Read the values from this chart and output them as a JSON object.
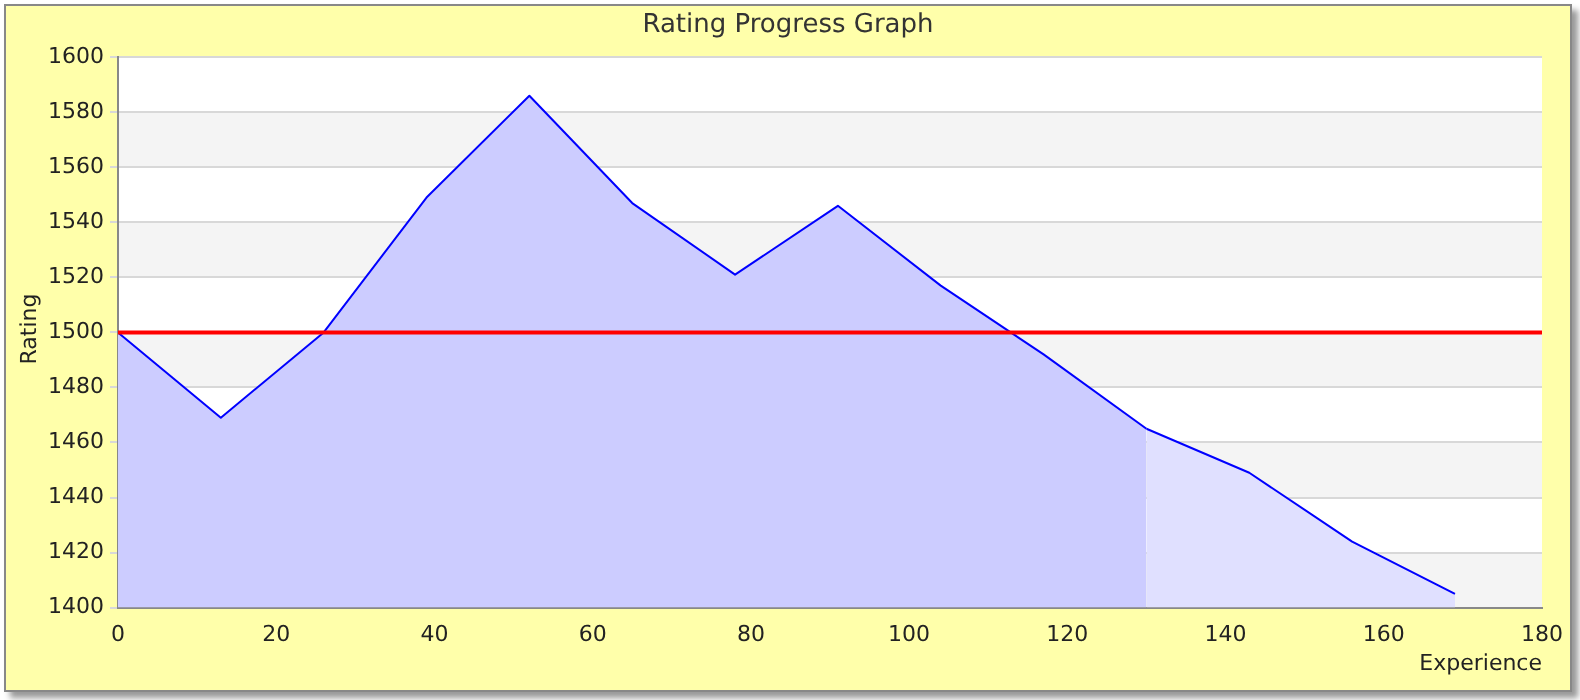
{
  "chart_data": {
    "type": "area",
    "title": "Rating Progress Graph",
    "xlabel": "Experience",
    "ylabel": "Rating",
    "series": [
      {
        "color": "#ccccff",
        "x": [
          0,
          13,
          26,
          39,
          52,
          65,
          78,
          91,
          104,
          117,
          130
        ],
        "values": [
          1500,
          1469,
          1500,
          1549,
          1586,
          1547,
          1521,
          1546,
          1517,
          1492,
          1465
        ]
      },
      {
        "color": "#e0e0ff",
        "x": [
          130,
          143,
          156,
          169
        ],
        "values": [
          1465,
          1449,
          1424,
          1405
        ]
      }
    ],
    "xlim": [
      0,
      180
    ],
    "xticks": [
      0,
      20,
      40,
      60,
      80,
      100,
      120,
      140,
      160,
      180
    ],
    "ylim": [
      1400,
      1600
    ],
    "yticks": [
      1400,
      1420,
      1440,
      1460,
      1480,
      1500,
      1520,
      1540,
      1560,
      1580,
      1600
    ],
    "grid": "y",
    "legend": false,
    "ref_lines": [
      {
        "axis": "y",
        "value": 1500,
        "color": "#ff0000"
      }
    ]
  }
}
